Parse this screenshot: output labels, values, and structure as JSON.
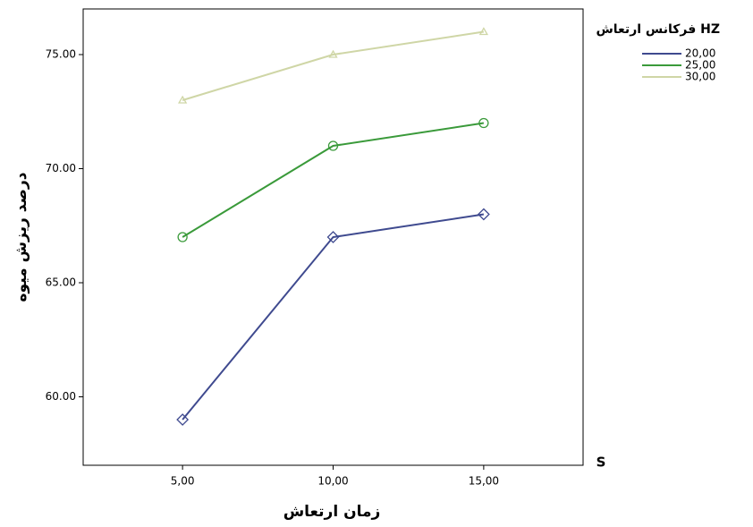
{
  "chart_data": {
    "type": "line",
    "x_label": "زمان ارتعاش",
    "y_label": "درصد ریزش میوه",
    "legend_title": "فرکانس ارتعاش HZ",
    "annotation": "S",
    "x": [
      5,
      10,
      15
    ],
    "xlim": [
      1.7,
      18.3
    ],
    "xticks": [
      {
        "value": 5,
        "label": "5,00"
      },
      {
        "value": 10,
        "label": "10,00"
      },
      {
        "value": 15,
        "label": "15,00"
      }
    ],
    "ylim": [
      57,
      77
    ],
    "yticks": [
      {
        "value": 60,
        "label": "60.00"
      },
      {
        "value": 65,
        "label": "65.00"
      },
      {
        "value": 70,
        "label": "70.00"
      },
      {
        "value": 75,
        "label": "75.00"
      }
    ],
    "grid": false,
    "legend": "right",
    "series": [
      {
        "name": "20,00",
        "color": "#3f4a8f",
        "marker": "diamond",
        "values": [
          59,
          67,
          68
        ]
      },
      {
        "name": "25,00",
        "color": "#3a9a3a",
        "marker": "circle",
        "values": [
          67,
          71,
          72
        ]
      },
      {
        "name": "30,00",
        "color": "#cfd6a6",
        "marker": "triangle",
        "values": [
          73,
          75,
          76
        ]
      }
    ]
  }
}
